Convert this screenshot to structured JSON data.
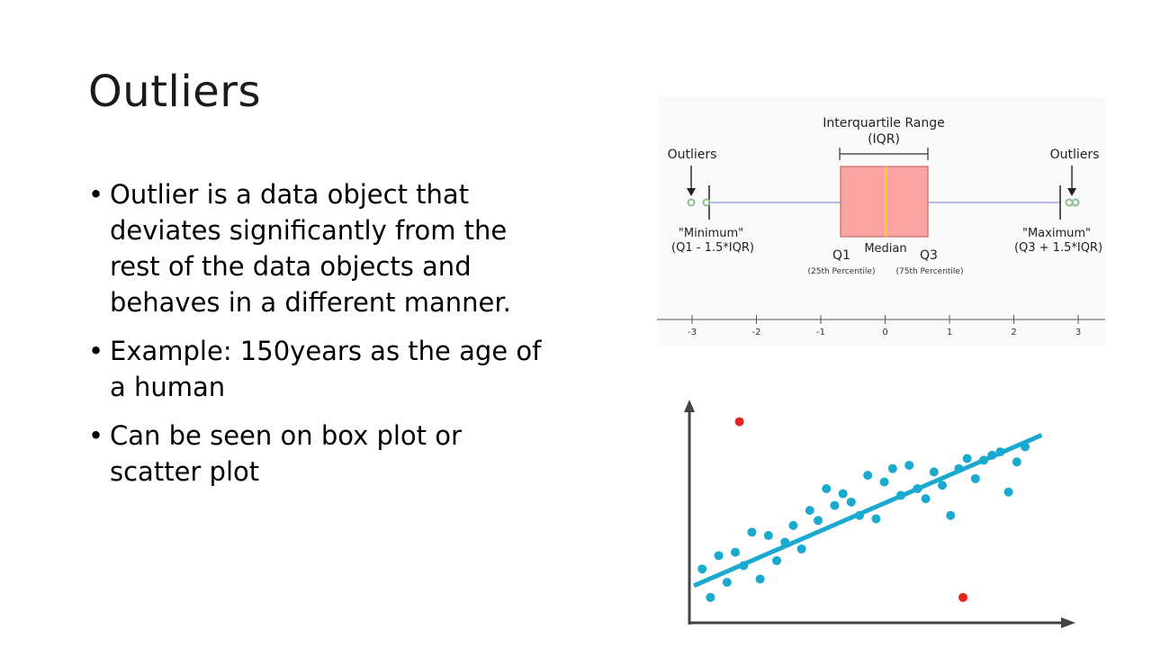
{
  "slide": {
    "title": "Outliers",
    "bullets": [
      "Outlier is a data object that deviates significantly from the rest of the data objects and behaves in a different  manner.",
      "Example: 150years as the age of a human",
      "Can be seen on box plot or scatter plot"
    ]
  },
  "boxplot": {
    "iqr_label_1": "Interquartile Range",
    "iqr_label_2": "(IQR)",
    "outliers_left": "Outliers",
    "outliers_right": "Outliers",
    "min_label_1": "\"Minimum\"",
    "min_label_2": "(Q1 - 1.5*IQR)",
    "max_label_1": "\"Maximum\"",
    "max_label_2": "(Q3 + 1.5*IQR)",
    "q1": "Q1",
    "median": "Median",
    "q3": "Q3",
    "p25": "(25th Percentile)",
    "p75": "(75th Percentile)",
    "ticks": [
      "-3",
      "-2",
      "-1",
      "0",
      "1",
      "2",
      "3"
    ],
    "colors": {
      "box": "#f9a3a3",
      "median": "#f2c94c",
      "whisker": "#9fa3d6",
      "outlier": "#8fbf8f"
    }
  },
  "chart_data": {
    "type": "scatter",
    "title": "",
    "xlabel": "",
    "ylabel": "",
    "series": [
      {
        "color": "#1aa9cf",
        "points": [
          [
            1,
            30
          ],
          [
            2,
            13
          ],
          [
            3,
            38
          ],
          [
            4,
            22
          ],
          [
            5,
            40
          ],
          [
            6,
            32
          ],
          [
            7,
            52
          ],
          [
            8,
            24
          ],
          [
            9,
            50
          ],
          [
            10,
            35
          ],
          [
            11,
            46
          ],
          [
            12,
            56
          ],
          [
            13,
            42
          ],
          [
            14,
            65
          ],
          [
            15,
            59
          ],
          [
            16,
            78
          ],
          [
            17,
            68
          ],
          [
            18,
            75
          ],
          [
            19,
            70
          ],
          [
            20,
            62
          ],
          [
            21,
            86
          ],
          [
            22,
            60
          ],
          [
            23,
            82
          ],
          [
            24,
            90
          ],
          [
            25,
            74
          ],
          [
            26,
            92
          ],
          [
            27,
            78
          ],
          [
            28,
            72
          ],
          [
            29,
            88
          ],
          [
            30,
            80
          ],
          [
            31,
            62
          ],
          [
            32,
            90
          ],
          [
            33,
            96
          ],
          [
            34,
            84
          ],
          [
            35,
            95
          ],
          [
            36,
            98
          ],
          [
            37,
            100
          ],
          [
            38,
            76
          ],
          [
            39,
            94
          ],
          [
            40,
            103
          ]
        ]
      },
      {
        "color": "#e8241f",
        "points": [
          [
            5.5,
            118
          ],
          [
            32.5,
            13
          ]
        ]
      }
    ],
    "trendline": {
      "from": [
        0,
        20
      ],
      "to": [
        42,
        110
      ]
    },
    "xlim": [
      0,
      45
    ],
    "ylim": [
      0,
      128
    ]
  }
}
